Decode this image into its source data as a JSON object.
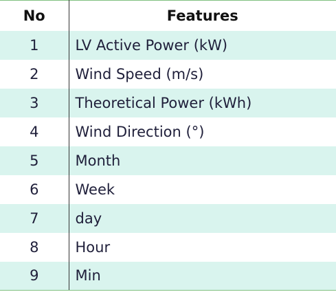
{
  "table": {
    "headers": {
      "no": "No",
      "features": "Features"
    },
    "rows": [
      {
        "no": "1",
        "feature": "LV Active Power (kW)"
      },
      {
        "no": "2",
        "feature": "Wind Speed (m/s)"
      },
      {
        "no": "3",
        "feature": "Theoretical Power (kWh)"
      },
      {
        "no": "4",
        "feature": "Wind Direction (°)"
      },
      {
        "no": "5",
        "feature": "Month"
      },
      {
        "no": "6",
        "feature": "Week"
      },
      {
        "no": "7",
        "feature": "day"
      },
      {
        "no": "8",
        "feature": "Hour"
      },
      {
        "no": "9",
        "feature": "Min"
      }
    ]
  },
  "colors": {
    "stripe": "#d9f4ee",
    "rule": "#7fbf7f",
    "divider": "#333333"
  }
}
